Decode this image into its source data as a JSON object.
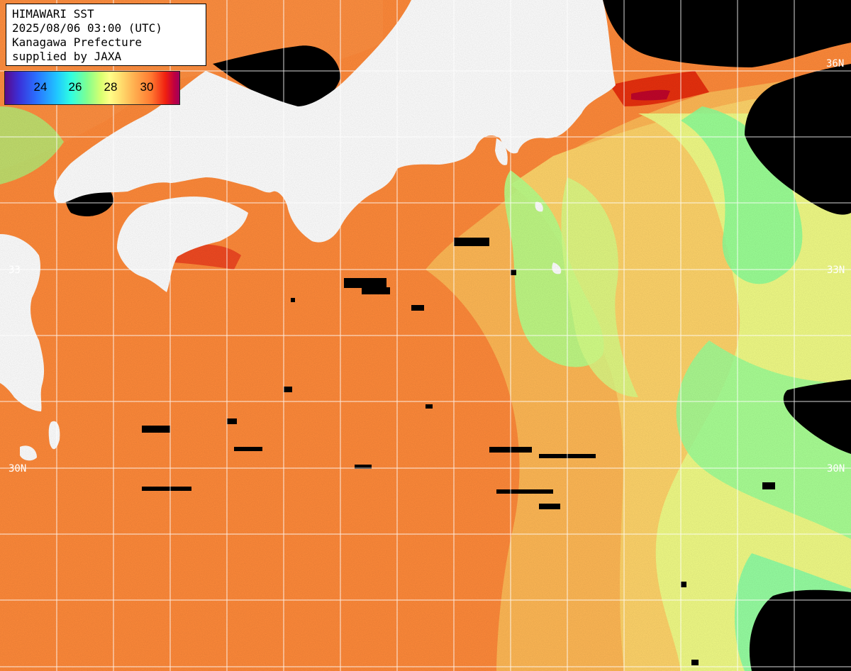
{
  "header": {
    "title": "HIMAWARI SST",
    "timestamp": "2025/08/06 03:00 (UTC)",
    "org": "Kanagawa Prefecture",
    "credit": "supplied by JAXA"
  },
  "legend": {
    "ticks": [
      "24",
      "26",
      "28",
      "30"
    ],
    "colors": [
      "#5a0a8a",
      "#2a70ff",
      "#30ffe0",
      "#d8ff70",
      "#ffb050",
      "#f02010",
      "#a0005a"
    ]
  },
  "latitude_labels": {
    "n36": "36N",
    "n33_left": "33",
    "n33_right": "33N",
    "n30_left": "30N",
    "n30_right": "30N"
  },
  "map_colors": {
    "ocean_warm": "#ff8c3c",
    "ocean_mid": "#ffc060",
    "ocean_cool": "#c8ff80",
    "current_green": "#80ff90",
    "hot_spot": "#e01010",
    "land": "#ffffff",
    "cloud": "#000000",
    "grid": "#ffffff"
  }
}
